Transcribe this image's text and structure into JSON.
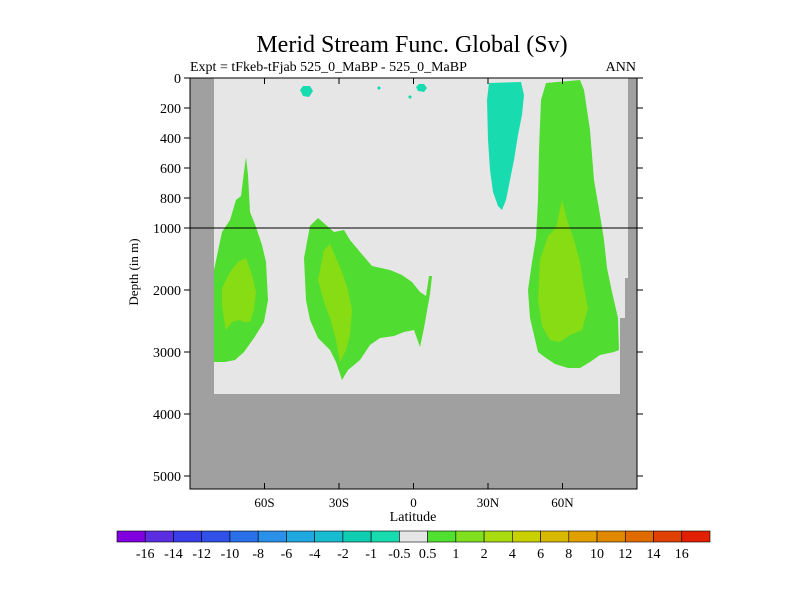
{
  "title": "Merid Stream Func. Global (Sv)",
  "subtitle_left": "Expt = tFkeb-tFjab  525_0_MaBP - 525_0_MaBP",
  "subtitle_right": "ANN",
  "chart_data": {
    "type": "heatmap",
    "title": "Merid Stream Func. Global (Sv)",
    "xlabel": "Latitude",
    "ylabel": "Depth (in m)",
    "x_ticks": [
      "60S",
      "30S",
      "0",
      "30N",
      "60N"
    ],
    "x_tick_values": [
      -60,
      -30,
      0,
      30,
      60
    ],
    "xlim": [
      -90,
      90
    ],
    "y_ticks_upper": [
      "0",
      "200",
      "400",
      "600",
      "800",
      "1000"
    ],
    "y_tick_values_upper": [
      0,
      200,
      400,
      600,
      800,
      1000
    ],
    "y_ticks_lower": [
      "2000",
      "3000",
      "4000",
      "5000"
    ],
    "y_tick_values_lower": [
      2000,
      3000,
      4000,
      5000
    ],
    "ylim": [
      0,
      5200
    ],
    "y_axis_break_at": 1000,
    "colorbar_labels": [
      "-16",
      "-14",
      "-12",
      "-10",
      "-8",
      "-6",
      "-4",
      "-2",
      "-1",
      "-0.5",
      "0.5",
      "1",
      "2",
      "4",
      "6",
      "8",
      "10",
      "12",
      "14",
      "16"
    ],
    "colorbar_colors": [
      "#8000e0",
      "#5a2ee0",
      "#3a3ee8",
      "#3050e8",
      "#2a70e8",
      "#2a90e8",
      "#20a8e0",
      "#18bcd0",
      "#10ccb0",
      "#18dcb0",
      "#e6e6e6",
      "#50e030",
      "#80e020",
      "#a8dc10",
      "#c8d000",
      "#d8b800",
      "#e0a000",
      "#e08800",
      "#e06c00",
      "#e04000",
      "#e02000"
    ],
    "colors": {
      "background": "#e6e6e6",
      "land": "#a0a0a0",
      "positive_0_5_to_1": "#50dc30",
      "positive_1_to_2": "#88dc14",
      "negative_minus1_to_minus0_5": "#18dcb0"
    },
    "regions": [
      {
        "name": "Southern Ocean cell",
        "level": "0.5 to 1",
        "lat_range": [
          -78,
          -55
        ],
        "depth_range": [
          550,
          3200
        ]
      },
      {
        "name": "Southern Ocean core",
        "level": "1 to 2",
        "lat_range": [
          -72,
          -63
        ],
        "depth_range": [
          1500,
          2700
        ]
      },
      {
        "name": "Subtropical South cell",
        "level": "0.5 to 1",
        "lat_range": [
          -40,
          7
        ],
        "depth_range": [
          1050,
          3450
        ]
      },
      {
        "name": "Subtropical South core",
        "level": "1 to 2",
        "lat_range": [
          -33,
          -26
        ],
        "depth_range": [
          1600,
          3000
        ]
      },
      {
        "name": "Northern Subtropical negative cell",
        "level": "-1 to -0.5",
        "lat_range": [
          30,
          45
        ],
        "depth_range": [
          0,
          870
        ]
      },
      {
        "name": "Northern high-latitude cell",
        "level": "0.5 to 1",
        "lat_range": [
          47,
          83
        ],
        "depth_range": [
          0,
          3300
        ]
      },
      {
        "name": "Northern high-latitude core",
        "level": "1 to 2",
        "lat_range": [
          55,
          68
        ],
        "depth_range": [
          850,
          2800
        ]
      }
    ]
  }
}
